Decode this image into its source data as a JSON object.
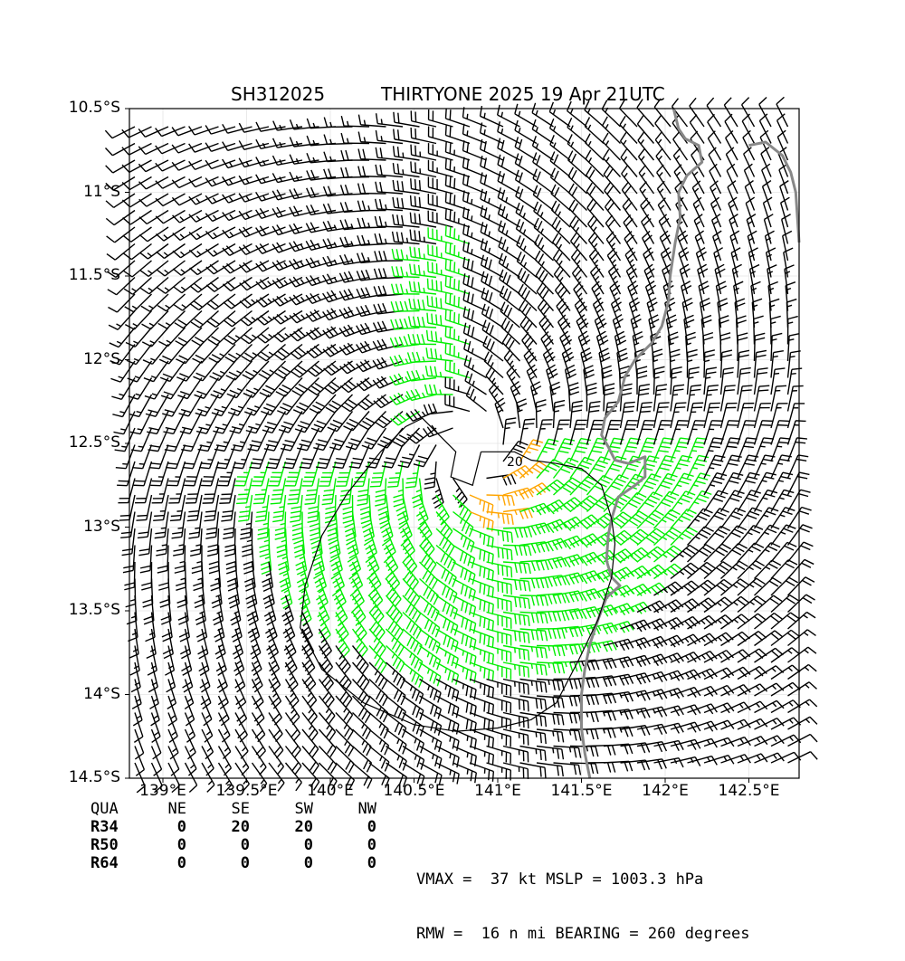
{
  "title": {
    "storm_id": "SH312025",
    "storm_info": "THIRTYONE 2025 19 Apr 21UTC"
  },
  "map": {
    "lon_range": [
      138.8,
      142.8
    ],
    "lat_range": [
      -14.5,
      -10.5
    ],
    "lat_ticks": [
      {
        "value": -10.5,
        "label": "10.5°S"
      },
      {
        "value": -11.0,
        "label": "11°S"
      },
      {
        "value": -11.5,
        "label": "11.5°S"
      },
      {
        "value": -12.0,
        "label": "12°S"
      },
      {
        "value": -12.5,
        "label": "12.5°S"
      },
      {
        "value": -13.0,
        "label": "13°S"
      },
      {
        "value": -13.5,
        "label": "13.5°S"
      },
      {
        "value": -14.0,
        "label": "14°S"
      },
      {
        "value": -14.5,
        "label": "14.5°S"
      }
    ],
    "lon_ticks": [
      {
        "value": 139.0,
        "label": "139°E"
      },
      {
        "value": 139.5,
        "label": "139.5°E"
      },
      {
        "value": 140.0,
        "label": "140°E"
      },
      {
        "value": 140.5,
        "label": "140.5°E"
      },
      {
        "value": 141.0,
        "label": "141°E"
      },
      {
        "value": 141.5,
        "label": "141.5°E"
      },
      {
        "value": 142.0,
        "label": "142°E"
      },
      {
        "value": 142.5,
        "label": "142.5°E"
      }
    ],
    "storm_center": {
      "lon": 140.85,
      "lat": -12.55
    },
    "contour_label": "20",
    "colors": {
      "barb_low": "#000000",
      "barb_34kt": "#00ee00",
      "barb_50kt": "#ffa500",
      "coast": "#888888",
      "contour": "#000000"
    },
    "coastline": [
      [
        142.05,
        -10.5
      ],
      [
        142.08,
        -10.62
      ],
      [
        142.12,
        -10.68
      ],
      [
        142.2,
        -10.72
      ],
      [
        142.22,
        -10.82
      ],
      [
        142.13,
        -10.9
      ],
      [
        142.08,
        -11.0
      ],
      [
        142.09,
        -11.15
      ],
      [
        142.06,
        -11.3
      ],
      [
        142.03,
        -11.5
      ],
      [
        142.02,
        -11.65
      ],
      [
        141.98,
        -11.8
      ],
      [
        141.92,
        -11.9
      ],
      [
        141.82,
        -12.0
      ],
      [
        141.76,
        -12.1
      ],
      [
        141.72,
        -12.25
      ],
      [
        141.64,
        -12.35
      ],
      [
        141.62,
        -12.45
      ],
      [
        141.66,
        -12.52
      ],
      [
        141.7,
        -12.6
      ],
      [
        141.78,
        -12.62
      ],
      [
        141.88,
        -12.58
      ],
      [
        141.88,
        -12.7
      ],
      [
        141.82,
        -12.75
      ],
      [
        141.72,
        -12.82
      ],
      [
        141.68,
        -12.95
      ],
      [
        141.66,
        -13.05
      ],
      [
        141.65,
        -13.2
      ],
      [
        141.68,
        -13.3
      ],
      [
        141.73,
        -13.35
      ],
      [
        141.65,
        -13.42
      ],
      [
        141.6,
        -13.55
      ],
      [
        141.55,
        -13.7
      ],
      [
        141.52,
        -13.85
      ],
      [
        141.5,
        -14.0
      ],
      [
        141.5,
        -14.2
      ],
      [
        141.52,
        -14.35
      ],
      [
        141.55,
        -14.5
      ]
    ],
    "coastline_ne": [
      [
        142.5,
        -10.72
      ],
      [
        142.6,
        -10.7
      ],
      [
        142.7,
        -10.78
      ],
      [
        142.75,
        -10.88
      ],
      [
        142.78,
        -11.0
      ],
      [
        142.8,
        -11.3
      ]
    ],
    "r34_contour": [
      [
        140.9,
        -12.55
      ],
      [
        141.1,
        -12.55
      ],
      [
        141.2,
        -12.6
      ],
      [
        141.35,
        -12.62
      ],
      [
        141.5,
        -12.65
      ],
      [
        141.62,
        -12.75
      ],
      [
        141.68,
        -12.95
      ],
      [
        141.7,
        -13.1
      ],
      [
        141.68,
        -13.3
      ],
      [
        141.6,
        -13.55
      ],
      [
        141.48,
        -13.8
      ],
      [
        141.35,
        -14.05
      ],
      [
        141.2,
        -14.15
      ],
      [
        141.0,
        -14.2
      ],
      [
        140.75,
        -14.22
      ],
      [
        140.5,
        -14.18
      ],
      [
        140.2,
        -14.05
      ],
      [
        139.95,
        -13.85
      ],
      [
        139.82,
        -13.6
      ],
      [
        139.85,
        -13.35
      ],
      [
        139.95,
        -13.05
      ],
      [
        140.1,
        -12.8
      ],
      [
        140.3,
        -12.55
      ],
      [
        140.45,
        -12.4
      ],
      [
        140.55,
        -12.35
      ],
      [
        140.65,
        -12.45
      ],
      [
        140.75,
        -12.55
      ],
      [
        140.72,
        -12.7
      ],
      [
        140.85,
        -12.75
      ],
      [
        140.9,
        -12.55
      ]
    ]
  },
  "radii_table": {
    "headers": [
      "QUA",
      "NE",
      "SE",
      "SW",
      "NW"
    ],
    "rows": [
      {
        "label": "R34",
        "values": [
          "0",
          "20",
          "20",
          "0"
        ]
      },
      {
        "label": "R50",
        "values": [
          "0",
          "0",
          "0",
          "0"
        ]
      },
      {
        "label": "R64",
        "values": [
          "0",
          "0",
          "0",
          "0"
        ]
      }
    ]
  },
  "stats": {
    "line1": "VMAX =  37 kt MSLP = 1003.3 hPa",
    "line2": "RMW =  16 n mi BEARING = 260 degrees"
  }
}
